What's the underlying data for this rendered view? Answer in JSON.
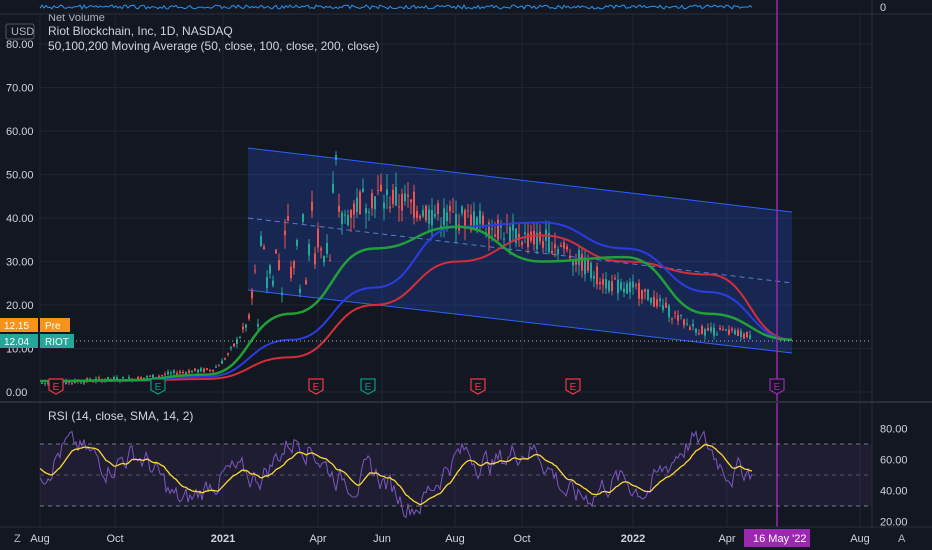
{
  "header": {
    "volume_label": "Net Volume",
    "volume_value": "0",
    "currency": "USD",
    "symbol_title": "Riot Blockchain, Inc, 1D, NASDAQ",
    "indicator_title": "50,100,200 Moving Average (50, close, 100, close, 200, close)"
  },
  "price_tags": {
    "pre_value": "12.15",
    "pre_label": "Pre",
    "last_value": "12.04",
    "last_label": "RIOT"
  },
  "rsi": {
    "title": "RSI (14, close, SMA, 14, 2)",
    "ticks": [
      "80.00",
      "60.00",
      "40.00",
      "20.00"
    ]
  },
  "time_axis": {
    "labels": [
      "Aug",
      "Oct",
      "2021",
      "Apr",
      "Jun",
      "Aug",
      "Oct",
      "2022",
      "Apr",
      "Aug"
    ],
    "cursor_label": "16 May '22",
    "corner_left": "Z",
    "corner_right": "A"
  },
  "earnings_markers": [
    {
      "label": "E",
      "color": "#f23645"
    },
    {
      "label": "E",
      "color": "#089981"
    },
    {
      "label": "E",
      "color": "#f23645"
    },
    {
      "label": "E",
      "color": "#089981"
    },
    {
      "label": "E",
      "color": "#f23645"
    },
    {
      "label": "E",
      "color": "#f23645"
    },
    {
      "label": "E",
      "color": "#9c27b0"
    }
  ],
  "colors": {
    "background": "#131722",
    "grid": "#1f2430",
    "ma50": "#21a038",
    "ma100": "#2b3ce0",
    "ma200": "#d32f3a",
    "channel": "#2962ff",
    "cursor": "#9c27b0",
    "rsi": "#7e57c2",
    "rsi_ma": "#fdd835",
    "up": "#26a69a",
    "down": "#ef5350"
  },
  "chart_data": {
    "type": "line",
    "title": "Riot Blockchain, Inc, 1D, NASDAQ",
    "ylabel": "USD",
    "yticks": [
      0,
      10,
      20,
      30,
      40,
      50,
      60,
      70,
      80
    ],
    "ylim": [
      -2,
      82
    ],
    "x": [
      "Aug",
      "Oct",
      "2021",
      "Apr",
      "Jun",
      "Aug",
      "Oct",
      "2022",
      "Apr",
      "Aug"
    ],
    "series": [
      {
        "values": [
          2,
          3,
          5,
          28,
          45,
          40,
          35,
          24,
          14,
          12
        ]
      },
      {
        "values": [
          2.5,
          2.7,
          4,
          18,
          33,
          38,
          30,
          31,
          18,
          12
        ]
      },
      {
        "values": [
          2.6,
          2.6,
          3.5,
          12,
          24,
          38,
          39,
          33,
          23,
          12
        ]
      },
      {
        "values": [
          2.5,
          2.6,
          3,
          8,
          20,
          30,
          36,
          30,
          27,
          12
        ]
      }
    ],
    "grid": true,
    "rsi_yticks": [
      80,
      60,
      40,
      20
    ]
  }
}
